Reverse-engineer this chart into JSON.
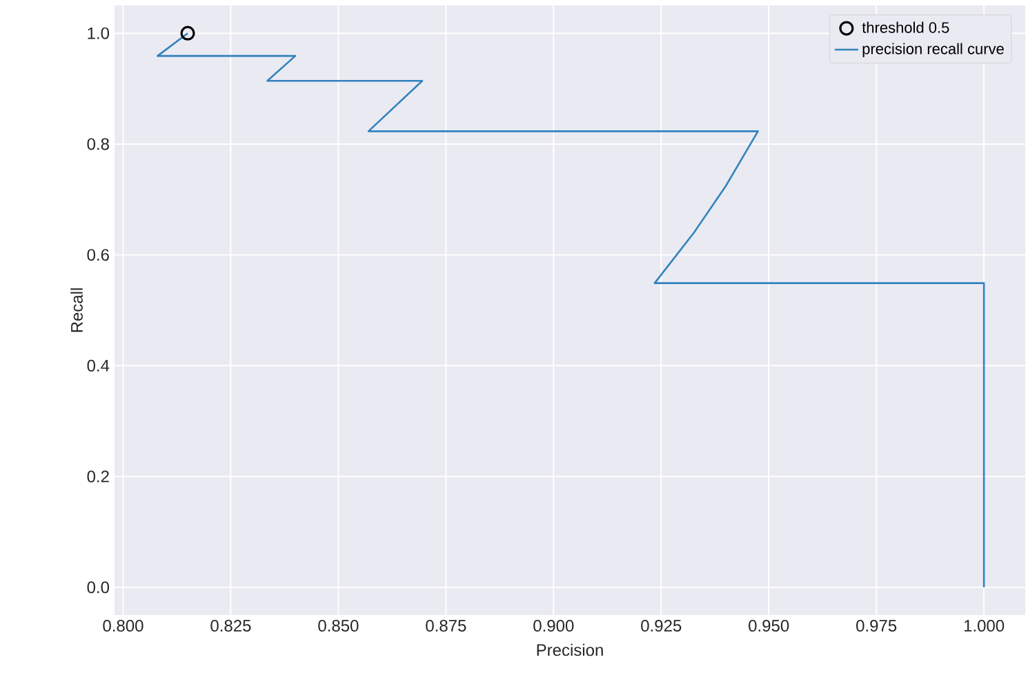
{
  "chart_data": {
    "type": "line",
    "xlabel": "Precision",
    "ylabel": "Recall",
    "xlim": [
      0.798,
      1.0096
    ],
    "ylim": [
      -0.05,
      1.05
    ],
    "xticks": [
      {
        "value": 0.8,
        "label": "0.800"
      },
      {
        "value": 0.825,
        "label": "0.825"
      },
      {
        "value": 0.85,
        "label": "0.850"
      },
      {
        "value": 0.875,
        "label": "0.875"
      },
      {
        "value": 0.9,
        "label": "0.900"
      },
      {
        "value": 0.925,
        "label": "0.925"
      },
      {
        "value": 0.95,
        "label": "0.950"
      },
      {
        "value": 0.975,
        "label": "0.975"
      },
      {
        "value": 1.0,
        "label": "1.000"
      }
    ],
    "yticks": [
      {
        "value": 0.0,
        "label": "0.0"
      },
      {
        "value": 0.2,
        "label": "0.2"
      },
      {
        "value": 0.4,
        "label": "0.4"
      },
      {
        "value": 0.6,
        "label": "0.6"
      },
      {
        "value": 0.8,
        "label": "0.8"
      },
      {
        "value": 1.0,
        "label": "1.0"
      }
    ],
    "grid": true,
    "legend": "top right",
    "series": [
      {
        "name": "threshold 0.5",
        "type": "scatter",
        "marker": "circle",
        "color": "#000000",
        "x": [
          0.815
        ],
        "values": [
          1.0
        ]
      },
      {
        "name": "precision recall curve",
        "marker": "none",
        "color": "#3182bd",
        "x": [
          0.815,
          0.808,
          0.84,
          0.8335,
          0.8695,
          0.857,
          0.9475,
          0.94,
          0.9327,
          0.9235,
          1.0,
          1.0
        ],
        "values": [
          1.0,
          0.959,
          0.959,
          0.914,
          0.914,
          0.823,
          0.823,
          0.724,
          0.641,
          0.549,
          0.549,
          0.0
        ]
      }
    ]
  }
}
